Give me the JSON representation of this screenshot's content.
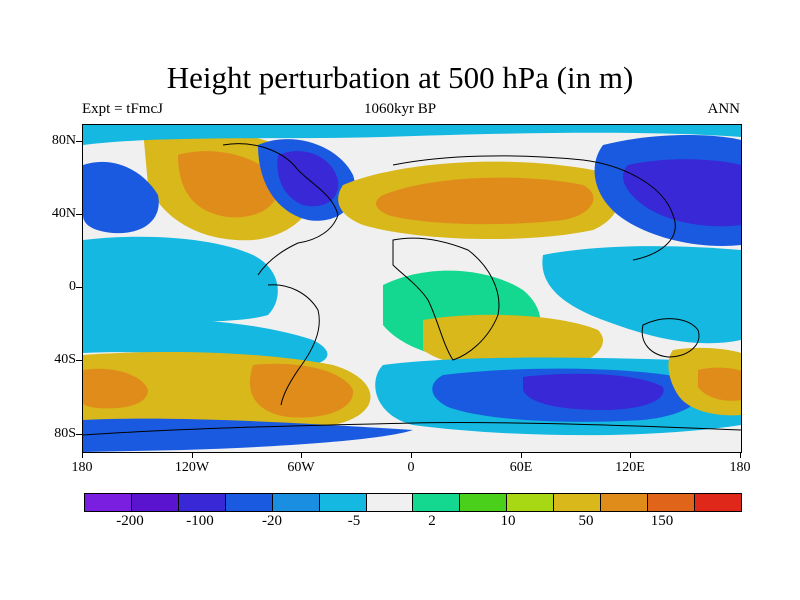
{
  "title": "Height perturbation at 500 hPa (in m)",
  "subtitle_left": "Expt = tFmcJ",
  "subtitle_center": "1060kyr BP",
  "subtitle_right": "ANN",
  "latitude_labels": [
    "80N",
    "40N",
    "0",
    "40S",
    "80S"
  ],
  "longitude_labels": [
    "180",
    "120W",
    "60W",
    "0",
    "60E",
    "120E",
    "180"
  ],
  "colorbar": {
    "colors": [
      "#7a1fe0",
      "#5a14d0",
      "#3828d6",
      "#1a5ae0",
      "#1a8ee0",
      "#14b8e0",
      "#f0f0f0",
      "#14d890",
      "#4ad01a",
      "#a8d814",
      "#d8b81a",
      "#e08c1a",
      "#e0641a",
      "#e0281a"
    ],
    "labels": [
      "-200",
      "-100",
      "-20",
      "-5",
      "2",
      "10",
      "50",
      "150"
    ]
  }
}
